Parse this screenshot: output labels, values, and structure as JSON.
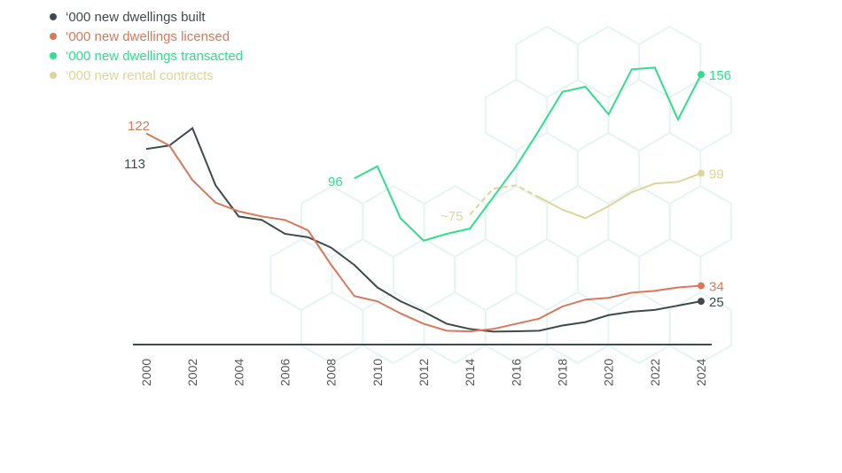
{
  "chart_data": {
    "type": "line",
    "title": "",
    "xlabel": "",
    "ylabel": "",
    "ylim": [
      0,
      156
    ],
    "xlim": [
      2000,
      2024
    ],
    "grid": false,
    "legend_position": "top-left",
    "x_ticks": [
      "2000",
      "2002",
      "2004",
      "2006",
      "2008",
      "2010",
      "2012",
      "2014",
      "2016",
      "2018",
      "2020",
      "2022",
      "2024"
    ],
    "series": [
      {
        "name": "‘000 new dwellings built",
        "color": "#3f4b4b",
        "x": [
          2000,
          2001,
          2002,
          2003,
          2004,
          2005,
          2006,
          2007,
          2008,
          2009,
          2010,
          2011,
          2012,
          2013,
          2014,
          2015,
          2016,
          2017,
          2018,
          2019,
          2020,
          2021,
          2022,
          2023,
          2024
        ],
        "values": [
          113,
          115,
          125,
          92,
          74,
          72,
          64,
          62,
          56,
          46,
          33,
          25,
          19,
          12,
          9,
          7.5,
          7.7,
          8,
          11,
          13,
          17,
          19,
          20,
          22.5,
          25
        ],
        "start_label": "113",
        "end_label": "25"
      },
      {
        "name": "‘000 new dwellings licensed",
        "color": "#d9785a",
        "x": [
          2000,
          2001,
          2002,
          2003,
          2004,
          2005,
          2006,
          2007,
          2008,
          2009,
          2010,
          2011,
          2012,
          2013,
          2014,
          2015,
          2016,
          2017,
          2018,
          2019,
          2020,
          2021,
          2022,
          2023,
          2024
        ],
        "values": [
          122,
          115,
          95,
          82,
          77,
          74,
          72,
          66,
          46,
          28,
          25,
          18,
          12,
          8,
          7.6,
          9,
          12,
          15,
          22,
          26,
          27,
          30,
          31,
          33,
          34
        ],
        "start_label": "122",
        "end_label": "34"
      },
      {
        "name": "‘000 new dwellings transacted",
        "color": "#2ee08a",
        "x": [
          2009,
          2010,
          2011,
          2012,
          2013,
          2014,
          2015,
          2016,
          2017,
          2018,
          2019,
          2020,
          2021,
          2022,
          2023,
          2024
        ],
        "values": [
          96,
          103,
          73,
          60,
          64,
          67,
          85,
          103,
          124,
          146,
          149,
          133,
          159,
          160,
          130,
          156
        ],
        "start_label": "96",
        "end_label": "156"
      },
      {
        "name": "‘000 new rental contracts",
        "color": "#ddd59a",
        "x": [
          2014,
          2015,
          2016,
          2017,
          2018,
          2019,
          2020,
          2021,
          2022,
          2023,
          2024
        ],
        "values": [
          75,
          90,
          92,
          85,
          78,
          73,
          80,
          88,
          93,
          94,
          99
        ],
        "dashed_until": 2017,
        "start_label": "~75",
        "end_label": "99"
      }
    ]
  }
}
